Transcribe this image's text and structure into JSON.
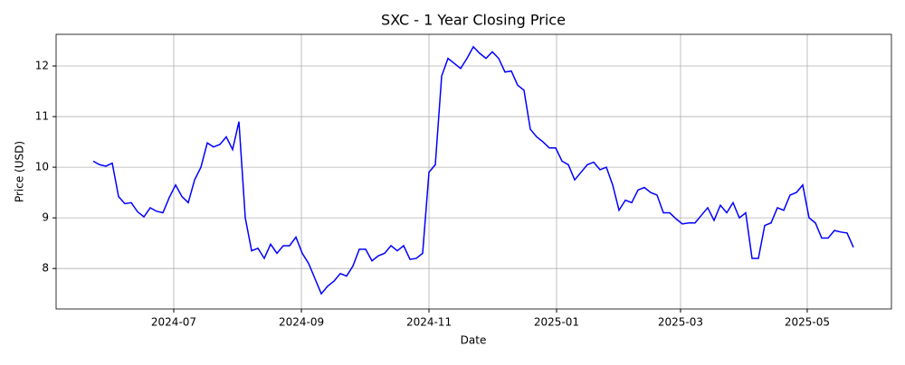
{
  "chart_data": {
    "type": "line",
    "title": "SXC - 1 Year Closing Price",
    "x_label": "Date",
    "y_label": "Price (USD)",
    "series": [
      {
        "name": "SXC",
        "color": "#0000ff",
        "values": [
          10.12,
          10.05,
          10.02,
          10.08,
          9.42,
          9.28,
          9.3,
          9.12,
          9.02,
          9.2,
          9.13,
          9.1,
          9.4,
          9.65,
          9.42,
          9.3,
          9.75,
          10.0,
          10.48,
          10.4,
          10.45,
          10.6,
          10.35,
          10.9,
          9.0,
          8.35,
          8.4,
          8.2,
          8.48,
          8.3,
          8.45,
          8.45,
          8.62,
          8.3,
          8.1,
          7.8,
          7.5,
          7.65,
          7.75,
          7.9,
          7.85,
          8.05,
          8.38,
          8.38,
          8.15,
          8.25,
          8.3,
          8.45,
          8.35,
          8.45,
          8.18,
          8.2,
          8.3,
          9.9,
          10.05,
          11.8,
          12.15,
          12.05,
          11.95,
          12.15,
          12.38,
          12.25,
          12.15,
          12.28,
          12.15,
          11.88,
          11.9,
          11.62,
          11.52,
          10.75,
          10.6,
          10.5,
          10.38,
          10.38,
          10.12,
          10.05,
          9.75,
          9.9,
          10.05,
          10.1,
          9.95,
          10.0,
          9.65,
          9.15,
          9.35,
          9.3,
          9.55,
          9.6,
          9.5,
          9.45,
          9.1,
          9.1,
          8.98,
          8.88,
          8.9,
          8.9,
          9.05,
          9.2,
          8.95,
          9.25,
          9.1,
          9.3,
          9.0,
          9.1,
          8.2,
          8.2,
          8.85,
          8.9,
          9.2,
          9.15,
          9.45,
          9.5,
          9.65,
          9.0,
          8.9,
          8.6,
          8.6,
          8.75,
          8.72,
          8.7,
          8.42
        ]
      }
    ],
    "xlim": [
      -5.86,
      126
    ],
    "xticks": [
      {
        "value": 12.71,
        "label": "2024-07"
      },
      {
        "value": 32.86,
        "label": "2024-09"
      },
      {
        "value": 53,
        "label": "2024-11"
      },
      {
        "value": 73.14,
        "label": "2025-01"
      },
      {
        "value": 92.71,
        "label": "2025-03"
      },
      {
        "value": 112.71,
        "label": "2025-05"
      }
    ],
    "ylim": [
      7.2,
      12.625
    ],
    "yticks": [
      8,
      9,
      10,
      11,
      12
    ],
    "grid": true
  }
}
